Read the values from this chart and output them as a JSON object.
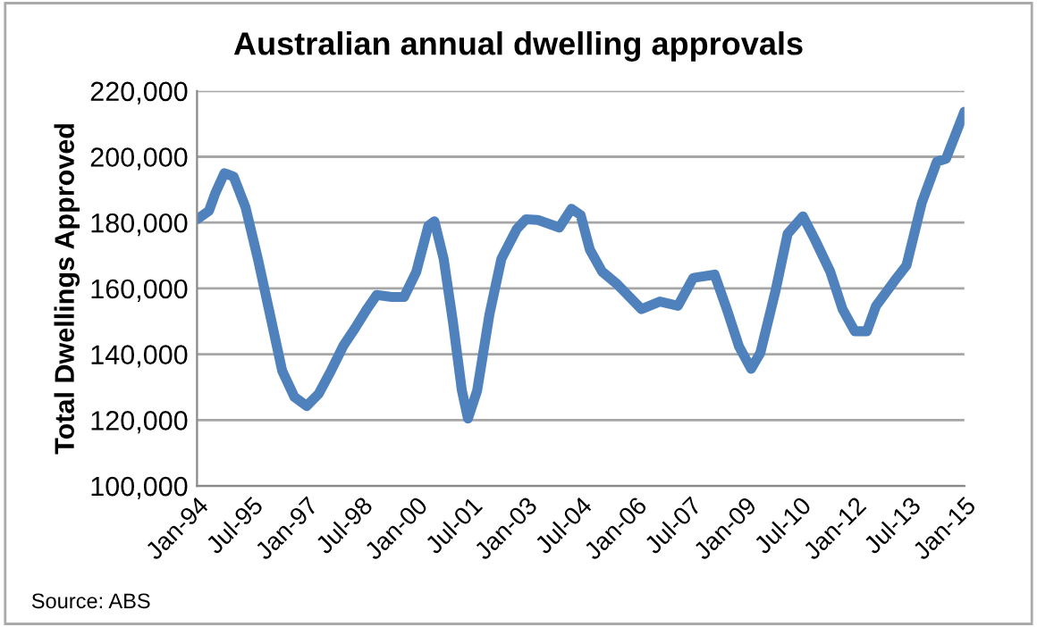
{
  "chart_data": {
    "type": "line",
    "title": "Australian annual dwelling approvals",
    "ylabel": "Total Dwellings Approved",
    "annotations": [
      "Source: ABS"
    ],
    "x": [
      "1994-01",
      "1994-05",
      "1994-07",
      "1994-10",
      "1995-01",
      "1995-05",
      "1995-09",
      "1996-01",
      "1996-05",
      "1996-09",
      "1997-01",
      "1997-05",
      "1997-09",
      "1998-01",
      "1998-05",
      "1998-09",
      "1998-12",
      "1999-05",
      "1999-09",
      "2000-01",
      "2000-05",
      "2000-07",
      "2000-10",
      "2001-01",
      "2001-04",
      "2001-06",
      "2001-09",
      "2002-01",
      "2002-05",
      "2002-10",
      "2003-01",
      "2003-05",
      "2003-12",
      "2004-04",
      "2004-07",
      "2004-10",
      "2005-02",
      "2005-07",
      "2006-03",
      "2006-09",
      "2007-03",
      "2007-08",
      "2008-03",
      "2008-07",
      "2008-11",
      "2009-03",
      "2009-06",
      "2009-11",
      "2010-03",
      "2010-08",
      "2010-12",
      "2011-05",
      "2011-09",
      "2012-01",
      "2012-05",
      "2012-08",
      "2013-02",
      "2013-06",
      "2013-11",
      "2014-04",
      "2014-07",
      "2015-01"
    ],
    "series": [
      {
        "color": "#4f81bd",
        "values": [
          181000,
          183600,
          188800,
          195000,
          194000,
          184600,
          169000,
          152000,
          135000,
          127000,
          124300,
          128000,
          135000,
          142500,
          148000,
          154000,
          158000,
          157400,
          157400,
          165000,
          179000,
          180400,
          169000,
          150000,
          129000,
          120500,
          129000,
          152000,
          169000,
          178000,
          181000,
          180800,
          178500,
          184200,
          182300,
          171800,
          165100,
          161300,
          153700,
          156000,
          154700,
          163200,
          164200,
          153700,
          142300,
          135600,
          140400,
          159400,
          176600,
          181900,
          174700,
          165100,
          153700,
          147000,
          147000,
          154700,
          162300,
          167000,
          186000,
          198500,
          199400,
          213700
        ]
      }
    ],
    "xlim": [
      "1994-01",
      "2015-01"
    ],
    "xticks": [
      {
        "value": "1994-01",
        "label": "Jan-94"
      },
      {
        "value": "1995-07",
        "label": "Jul-95"
      },
      {
        "value": "1997-01",
        "label": "Jan-97"
      },
      {
        "value": "1998-07",
        "label": "Jul-98"
      },
      {
        "value": "2000-01",
        "label": "Jan-00"
      },
      {
        "value": "2001-07",
        "label": "Jul-01"
      },
      {
        "value": "2003-01",
        "label": "Jan-03"
      },
      {
        "value": "2004-07",
        "label": "Jul-04"
      },
      {
        "value": "2006-01",
        "label": "Jan-06"
      },
      {
        "value": "2007-07",
        "label": "Jul-07"
      },
      {
        "value": "2009-01",
        "label": "Jan-09"
      },
      {
        "value": "2010-07",
        "label": "Jul-10"
      },
      {
        "value": "2012-01",
        "label": "Jan-12"
      },
      {
        "value": "2013-07",
        "label": "Jul-13"
      },
      {
        "value": "2015-01",
        "label": "Jan-15"
      }
    ],
    "ylim": [
      100000,
      220000
    ],
    "yticks": [
      {
        "value": 100000,
        "label": "100,000"
      },
      {
        "value": 120000,
        "label": "120,000"
      },
      {
        "value": 140000,
        "label": "140,000"
      },
      {
        "value": 160000,
        "label": "160,000"
      },
      {
        "value": 180000,
        "label": "180,000"
      },
      {
        "value": 200000,
        "label": "200,000"
      },
      {
        "value": 220000,
        "label": "220,000"
      }
    ],
    "grid": "y",
    "marker": "none",
    "line_style": "solid"
  }
}
